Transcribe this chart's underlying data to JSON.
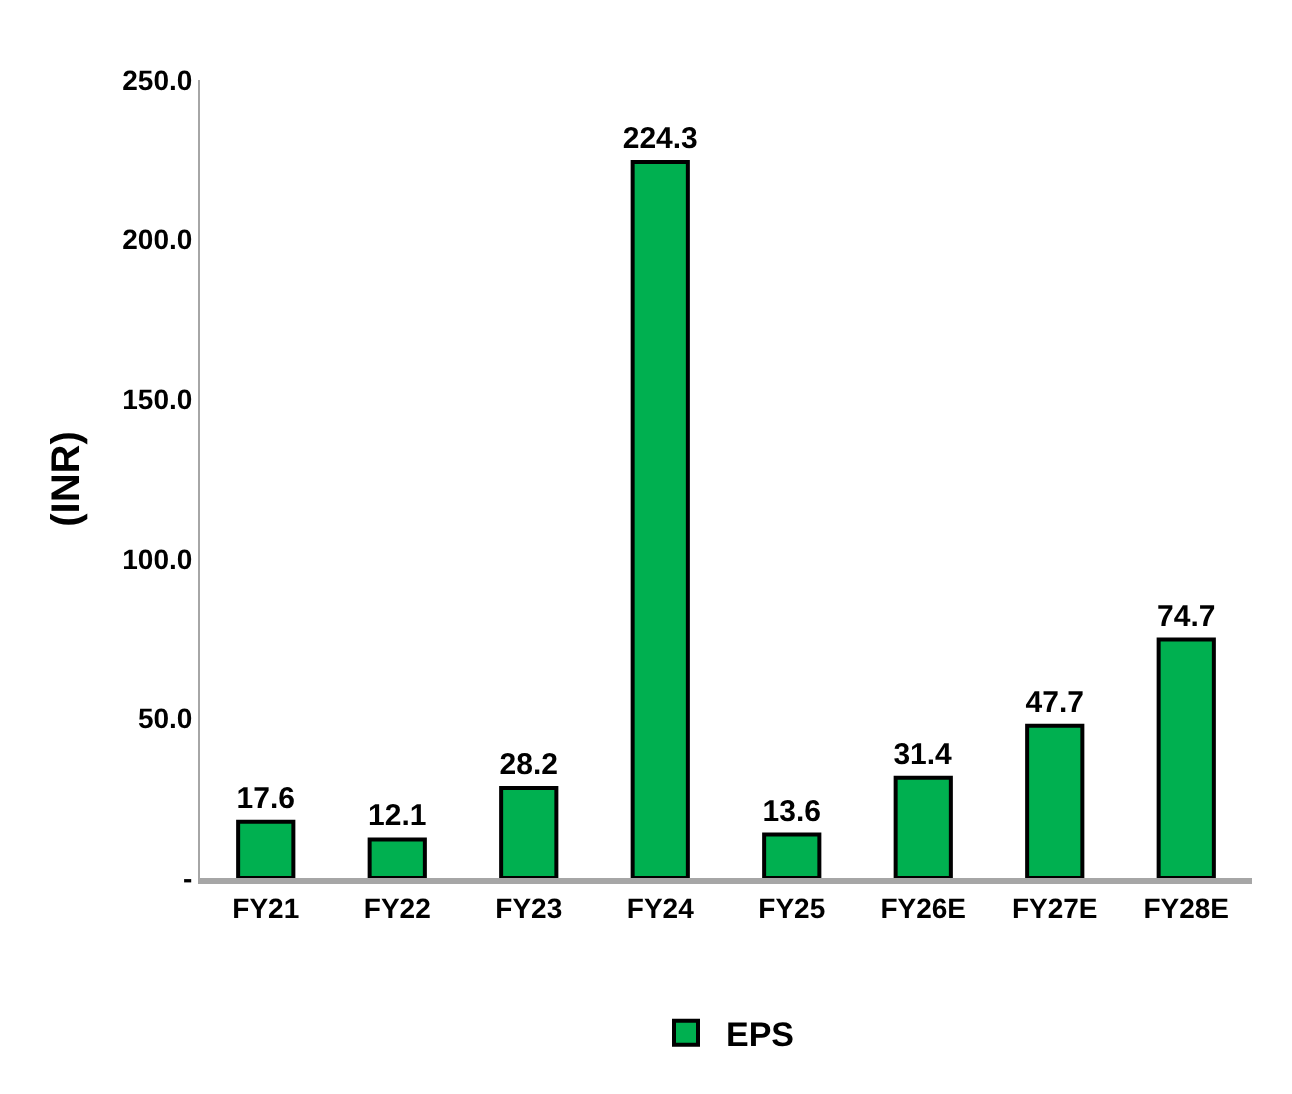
{
  "chart_data": {
    "type": "bar",
    "ylabel": "(INR)",
    "categories": [
      "FY21",
      "FY22",
      "FY23",
      "FY24",
      "FY25",
      "FY26E",
      "FY27E",
      "FY28E"
    ],
    "series": [
      {
        "name": "EPS",
        "color": "#00b050",
        "values": [
          17.6,
          12.1,
          28.2,
          224.3,
          13.6,
          31.4,
          47.7,
          74.7
        ]
      }
    ],
    "ylim": [
      0,
      250
    ],
    "yticks": [
      {
        "value": 0,
        "label": "-"
      },
      {
        "value": 50,
        "label": "50.0"
      },
      {
        "value": 100,
        "label": "100.0"
      },
      {
        "value": 150,
        "label": "150.0"
      },
      {
        "value": 200,
        "label": "200.0"
      },
      {
        "value": 250,
        "label": "250.0"
      }
    ],
    "data_labels": true,
    "legend": "bottom"
  }
}
